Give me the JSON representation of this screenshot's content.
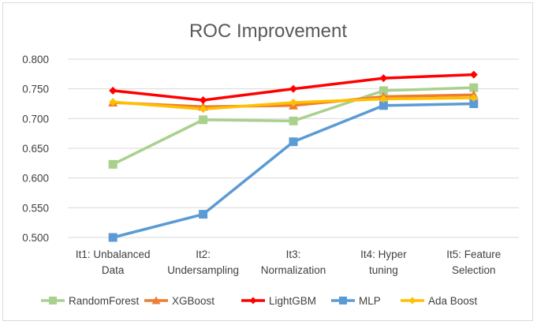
{
  "chart_data": {
    "type": "line",
    "title": "ROC Improvement",
    "categories": [
      [
        "It1: Unbalanced",
        "Data"
      ],
      [
        "It2:",
        "Undersampling"
      ],
      [
        "It3:",
        "Normalization"
      ],
      [
        "It4: Hyper",
        "tuning"
      ],
      [
        "It5: Feature",
        "Selection"
      ]
    ],
    "ylim": [
      0.5,
      0.8
    ],
    "yticks": [
      "0.500",
      "0.550",
      "0.600",
      "0.650",
      "0.700",
      "0.750",
      "0.800"
    ],
    "grid": true,
    "legend": "bottom",
    "series": [
      {
        "name": "RandomForest",
        "color": "#a9d18e",
        "marker": "square",
        "values": [
          0.623,
          0.698,
          0.696,
          0.747,
          0.752
        ]
      },
      {
        "name": "XGBoost",
        "color": "#ed7d31",
        "marker": "triangle",
        "values": [
          0.727,
          0.72,
          0.722,
          0.737,
          0.74
        ]
      },
      {
        "name": "LightGBM",
        "color": "#ff0000",
        "marker": "diamond",
        "values": [
          0.747,
          0.731,
          0.75,
          0.768,
          0.774
        ]
      },
      {
        "name": "MLP",
        "color": "#5b9bd5",
        "marker": "square",
        "values": [
          0.5,
          0.539,
          0.661,
          0.722,
          0.725
        ]
      },
      {
        "name": "Ada Boost",
        "color": "#ffc000",
        "marker": "diamond",
        "values": [
          0.728,
          0.716,
          0.727,
          0.733,
          0.735
        ]
      }
    ]
  }
}
